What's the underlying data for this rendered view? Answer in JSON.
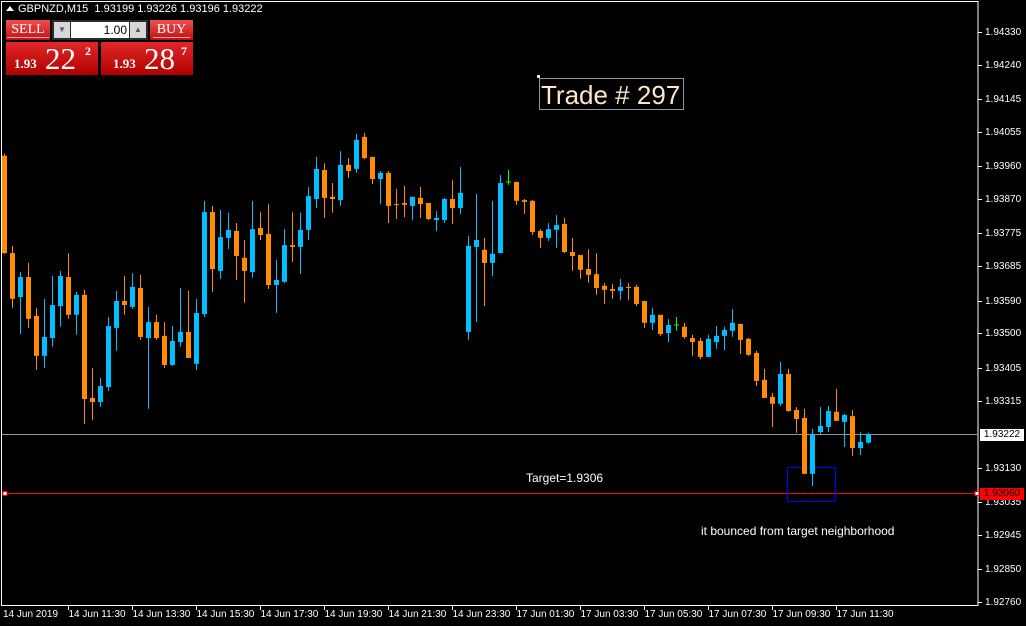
{
  "header": {
    "symbol_timeframe": "GBPNZD,M15",
    "ohlc": "1.93199 1.93226 1.93196 1.93222"
  },
  "trade_panel": {
    "sell_label": "SELL",
    "buy_label": "BUY",
    "volume": "1.00",
    "sell_price": {
      "prefix": "1.93",
      "big": "22",
      "sup": "2"
    },
    "buy_price": {
      "prefix": "1.93",
      "big": "28",
      "sup": "7"
    }
  },
  "annotations": {
    "trade_label": "Trade # 297",
    "target_label": "Target=1.9306",
    "comment": "it bounced from target neighborhood"
  },
  "colors": {
    "bull": "#00bfff",
    "bear": "#ff8c00",
    "doji": "#00ff00",
    "target_line": "#ff0000",
    "bid_line": "#8c96a0",
    "rectangle": "#0000ff",
    "background": "#000000",
    "axis": "#ffffff"
  },
  "chart_data": {
    "type": "candlestick",
    "symbol": "GBPNZD",
    "timeframe": "M15",
    "ylim": [
      1.9276,
      1.9433
    ],
    "y_ticks": [
      "1.94330",
      "1.94240",
      "1.94145",
      "1.94055",
      "1.93960",
      "1.93870",
      "1.93775",
      "1.93685",
      "1.93590",
      "1.93500",
      "1.93405",
      "1.93315",
      "1.93130",
      "1.93035",
      "1.92945",
      "1.92850",
      "1.92760"
    ],
    "x_ticks": [
      "14 Jun 2019",
      "14 Jun 11:30",
      "14 Jun 13:30",
      "14 Jun 15:30",
      "14 Jun 17:30",
      "14 Jun 19:30",
      "14 Jun 21:30",
      "14 Jun 23:30",
      "17 Jun 01:30",
      "17 Jun 03:30",
      "17 Jun 05:30",
      "17 Jun 07:30",
      "17 Jun 09:30",
      "17 Jun 11:30"
    ],
    "bid_price": "1.93222",
    "target_price": "1.93060",
    "rectangle": {
      "time_from": "17 Jun 10:00",
      "time_to": "17 Jun 11:30",
      "price_high": 1.93132,
      "price_low": 1.93038
    },
    "first_bar_time": "14 Jun 09:30",
    "ohlc_fields": [
      "open",
      "high",
      "low",
      "close"
    ],
    "candles": [
      [
        1.93989,
        1.93995,
        1.93719,
        1.93721
      ],
      [
        1.93721,
        1.93741,
        1.9357,
        1.93595
      ],
      [
        1.936,
        1.93669,
        1.93498,
        1.93655
      ],
      [
        1.93655,
        1.93694,
        1.93515,
        1.9354
      ],
      [
        1.93548,
        1.9357,
        1.93399,
        1.93438
      ],
      [
        1.93438,
        1.93595,
        1.93405,
        1.9349
      ],
      [
        1.93487,
        1.93658,
        1.93463,
        1.93578
      ],
      [
        1.93575,
        1.93672,
        1.93518,
        1.93658
      ],
      [
        1.93655,
        1.93721,
        1.9354,
        1.93551
      ],
      [
        1.93551,
        1.93614,
        1.93496,
        1.93606
      ],
      [
        1.93606,
        1.9362,
        1.9325,
        1.93319
      ],
      [
        1.93322,
        1.93405,
        1.93261,
        1.93311
      ],
      [
        1.93311,
        1.93377,
        1.93297,
        1.93355
      ],
      [
        1.93352,
        1.93545,
        1.93341,
        1.9352
      ],
      [
        1.93515,
        1.93617,
        1.93452,
        1.93589
      ],
      [
        1.93589,
        1.93658,
        1.93551,
        1.93578
      ],
      [
        1.93573,
        1.93666,
        1.93567,
        1.93628
      ],
      [
        1.93625,
        1.93661,
        1.93482,
        1.9349
      ],
      [
        1.93487,
        1.93573,
        1.93292,
        1.93531
      ],
      [
        1.93531,
        1.93551,
        1.93482,
        1.93487
      ],
      [
        1.93493,
        1.93531,
        1.93405,
        1.93413
      ],
      [
        1.93413,
        1.9352,
        1.9341,
        1.93479
      ],
      [
        1.93476,
        1.93625,
        1.93463,
        1.93504
      ],
      [
        1.93504,
        1.93617,
        1.93432,
        1.93432
      ],
      [
        1.93416,
        1.93595,
        1.93399,
        1.93556
      ],
      [
        1.93553,
        1.93865,
        1.93545,
        1.93834
      ],
      [
        1.93834,
        1.93851,
        1.93614,
        1.93677
      ],
      [
        1.93672,
        1.9384,
        1.9365,
        1.93765
      ],
      [
        1.93763,
        1.93832,
        1.93732,
        1.93785
      ],
      [
        1.93782,
        1.93804,
        1.93647,
        1.93713
      ],
      [
        1.93708,
        1.93757,
        1.93584,
        1.93672
      ],
      [
        1.93669,
        1.93865,
        1.93653,
        1.93787
      ],
      [
        1.9379,
        1.93834,
        1.93757,
        1.93771
      ],
      [
        1.93774,
        1.93856,
        1.93622,
        1.93633
      ],
      [
        1.93633,
        1.93702,
        1.93556,
        1.93647
      ],
      [
        1.93642,
        1.93787,
        1.93639,
        1.93743
      ],
      [
        1.93743,
        1.93834,
        1.93697,
        1.93738
      ],
      [
        1.93738,
        1.93832,
        1.93663,
        1.93785
      ],
      [
        1.93785,
        1.93903,
        1.93757,
        1.93878
      ],
      [
        1.9387,
        1.93986,
        1.93845,
        1.93953
      ],
      [
        1.9395,
        1.93969,
        1.93818,
        1.93873
      ],
      [
        1.93876,
        1.93914,
        1.93832,
        1.9387
      ],
      [
        1.93867,
        1.94002,
        1.93851,
        1.93964
      ],
      [
        1.93964,
        1.93983,
        1.93928,
        1.93947
      ],
      [
        1.93953,
        1.94049,
        1.93942,
        1.94033
      ],
      [
        1.94041,
        1.94052,
        1.9398,
        1.93983
      ],
      [
        1.93986,
        1.93986,
        1.93911,
        1.93925
      ],
      [
        1.93925,
        1.93947,
        1.93856,
        1.93942
      ],
      [
        1.93942,
        1.93947,
        1.93804,
        1.93851
      ],
      [
        1.93856,
        1.93898,
        1.93815,
        1.93854
      ],
      [
        1.93859,
        1.93906,
        1.9382,
        1.93854
      ],
      [
        1.93851,
        1.93876,
        1.93812,
        1.93876
      ],
      [
        1.93873,
        1.93903,
        1.93818,
        1.93856
      ],
      [
        1.93859,
        1.93859,
        1.93812,
        1.93815
      ],
      [
        1.93812,
        1.93837,
        1.93782,
        1.93818
      ],
      [
        1.93812,
        1.93873,
        1.93804,
        1.9387
      ],
      [
        1.9387,
        1.93922,
        1.93801,
        1.93845
      ],
      [
        1.93845,
        1.93958,
        1.93829,
        1.93887
      ],
      [
        1.93504,
        1.93768,
        1.93482,
        1.93741
      ],
      [
        1.93738,
        1.93884,
        1.93531,
        1.93757
      ],
      [
        1.9373,
        1.93763,
        1.93575,
        1.93694
      ],
      [
        1.93694,
        1.93865,
        1.93658,
        1.93719
      ],
      [
        1.93721,
        1.93936,
        1.93721,
        1.93914
      ],
      [
        1.93917,
        1.9395,
        1.93909,
        1.93917
      ],
      [
        1.93917,
        1.93917,
        1.93854,
        1.93865
      ],
      [
        1.93867,
        1.9387,
        1.93829,
        1.93862
      ],
      [
        1.93865,
        1.93867,
        1.93771,
        1.93779
      ],
      [
        1.93782,
        1.93787,
        1.93735,
        1.93763
      ],
      [
        1.93763,
        1.93804,
        1.93754,
        1.93787
      ],
      [
        1.93785,
        1.93826,
        1.93735,
        1.93798
      ],
      [
        1.93801,
        1.93818,
        1.93721,
        1.93724
      ],
      [
        1.93724,
        1.93763,
        1.93672,
        1.93713
      ],
      [
        1.93716,
        1.93716,
        1.9365,
        1.93675
      ],
      [
        1.93677,
        1.93732,
        1.93639,
        1.93661
      ],
      [
        1.93663,
        1.93721,
        1.93606,
        1.93625
      ],
      [
        1.93631,
        1.93639,
        1.93581,
        1.9362
      ],
      [
        1.93622,
        1.93636,
        1.93595,
        1.93617
      ],
      [
        1.93617,
        1.9365,
        1.93592,
        1.93628
      ],
      [
        1.93628,
        1.93639,
        1.93592,
        1.93625
      ],
      [
        1.93628,
        1.93633,
        1.93575,
        1.93581
      ],
      [
        1.93589,
        1.93589,
        1.93515,
        1.93529
      ],
      [
        1.93529,
        1.9357,
        1.93509,
        1.93551
      ],
      [
        1.93551,
        1.93551,
        1.93493,
        1.93498
      ],
      [
        1.93501,
        1.9354,
        1.93476,
        1.93523
      ],
      [
        1.93523,
        1.93545,
        1.93507,
        1.93523
      ],
      [
        1.93518,
        1.93529,
        1.93485,
        1.9349
      ],
      [
        1.93487,
        1.93496,
        1.93438,
        1.93476
      ],
      [
        1.93479,
        1.93487,
        1.93429,
        1.93435
      ],
      [
        1.93435,
        1.93496,
        1.93435,
        1.93485
      ],
      [
        1.93476,
        1.9352,
        1.93457,
        1.93493
      ],
      [
        1.93493,
        1.93518,
        1.93454,
        1.93509
      ],
      [
        1.93507,
        1.93567,
        1.9349,
        1.93529
      ],
      [
        1.93526,
        1.93526,
        1.93443,
        1.93482
      ],
      [
        1.93485,
        1.93487,
        1.93438,
        1.93441
      ],
      [
        1.93446,
        1.93452,
        1.93355,
        1.93369
      ],
      [
        1.93372,
        1.93402,
        1.93322,
        1.93322
      ],
      [
        1.93325,
        1.93336,
        1.93242,
        1.93306
      ],
      [
        1.93306,
        1.93421,
        1.933,
        1.93388
      ],
      [
        1.93388,
        1.93402,
        1.93284,
        1.93286
      ],
      [
        1.93289,
        1.93297,
        1.93226,
        1.93264
      ],
      [
        1.93267,
        1.93292,
        1.93113,
        1.93113
      ],
      [
        1.93113,
        1.93237,
        1.9308,
        1.9322
      ],
      [
        1.93228,
        1.93297,
        1.93223,
        1.93245
      ],
      [
        1.93242,
        1.933,
        1.93228,
        1.93286
      ],
      [
        1.93284,
        1.93347,
        1.93259,
        1.93259
      ],
      [
        1.93256,
        1.93278,
        1.93187,
        1.93275
      ],
      [
        1.93272,
        1.93289,
        1.93162,
        1.93184
      ],
      [
        1.93184,
        1.93228,
        1.93165,
        1.93201
      ],
      [
        1.93199,
        1.93226,
        1.93196,
        1.93222
      ]
    ]
  }
}
